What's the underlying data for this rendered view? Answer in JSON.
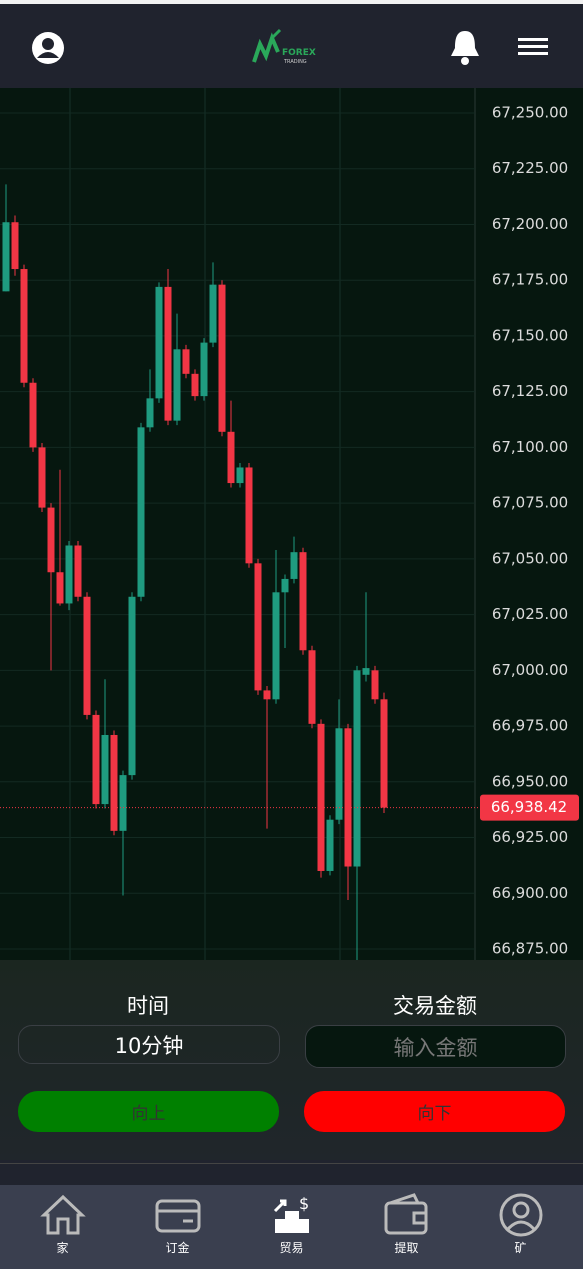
{
  "header": {
    "logo_text": "FOREX",
    "logo_sub": "TRADING"
  },
  "chart": {
    "type": "candlestick",
    "up_color": "#1f9b80",
    "down_color": "#f23645",
    "ylim": [
      66875,
      67250
    ],
    "yticks": [
      {
        "value": 67250,
        "label": "67,250.00"
      },
      {
        "value": 67225,
        "label": "67,225.00"
      },
      {
        "value": 67200,
        "label": "67,200.00"
      },
      {
        "value": 67175,
        "label": "67,175.00"
      },
      {
        "value": 67150,
        "label": "67,150.00"
      },
      {
        "value": 67125,
        "label": "67,125.00"
      },
      {
        "value": 67100,
        "label": "67,100.00"
      },
      {
        "value": 67075,
        "label": "67,075.00"
      },
      {
        "value": 67050,
        "label": "67,050.00"
      },
      {
        "value": 67025,
        "label": "67,025.00"
      },
      {
        "value": 67000,
        "label": "67,000.00"
      },
      {
        "value": 66975,
        "label": "66,975.00"
      },
      {
        "value": 66950,
        "label": "66,950.00"
      },
      {
        "value": 66925,
        "label": "66,925.00"
      },
      {
        "value": 66900,
        "label": "66,900.00"
      },
      {
        "value": 66875,
        "label": "66,875.00"
      }
    ],
    "open": [
      67170,
      67201,
      67180,
      67129,
      67100,
      67073,
      67044,
      67030,
      67056,
      67033,
      66980,
      66940,
      66971,
      66928,
      66953,
      67033,
      67109,
      67122,
      67172,
      67112,
      67144,
      67133,
      67123,
      67147,
      67173,
      67107,
      67084,
      67091,
      67048,
      66991,
      66987,
      67035,
      67041,
      67053,
      67009,
      66976,
      66910,
      66933,
      66974,
      66912,
      66998,
      67000,
      66987
    ],
    "high": [
      67218,
      67204,
      67182,
      67131,
      67102,
      67075,
      67090,
      67058,
      67058,
      67035,
      66982,
      66996,
      66973,
      66955,
      67035,
      67111,
      67135,
      67174,
      67180,
      67160,
      67146,
      67135,
      67149,
      67183,
      67175,
      67121,
      67093,
      67093,
      67050,
      66993,
      67054,
      67043,
      67060,
      67055,
      67011,
      66978,
      66935,
      66987,
      66976,
      67002,
      67035,
      67002,
      66990
    ],
    "low": [
      67170,
      67177,
      67127,
      67098,
      67071,
      67000,
      67029,
      67027,
      67031,
      66978,
      66938,
      66938,
      66926,
      66899,
      66951,
      67031,
      67107,
      67120,
      67110,
      67110,
      67131,
      67121,
      67121,
      67145,
      67105,
      67082,
      67082,
      67046,
      66989,
      66929,
      66985,
      67010,
      67039,
      67007,
      66974,
      66907,
      66908,
      66931,
      66897,
      66870,
      66995,
      66985,
      66936
    ],
    "close": [
      67201,
      67180,
      67129,
      67100,
      67073,
      67044,
      67030,
      67056,
      67033,
      66980,
      66940,
      66971,
      66928,
      66953,
      67033,
      67109,
      67122,
      67172,
      67112,
      67144,
      67133,
      67123,
      67147,
      67173,
      67107,
      67084,
      67091,
      67048,
      66991,
      66987,
      67035,
      67041,
      67053,
      67009,
      66976,
      66910,
      66933,
      66974,
      66912,
      67000,
      67001,
      66987,
      66938.42
    ],
    "current": {
      "value": 66938.42,
      "label": "66,938.42"
    }
  },
  "trade": {
    "time_label": "时间",
    "time_value": "10分钟",
    "amount_label": "交易金额",
    "amount_placeholder": "输入金额",
    "up_button": "向上",
    "down_button": "向下"
  },
  "nav": [
    "家",
    "订金",
    "贸易",
    "提取",
    "矿"
  ]
}
